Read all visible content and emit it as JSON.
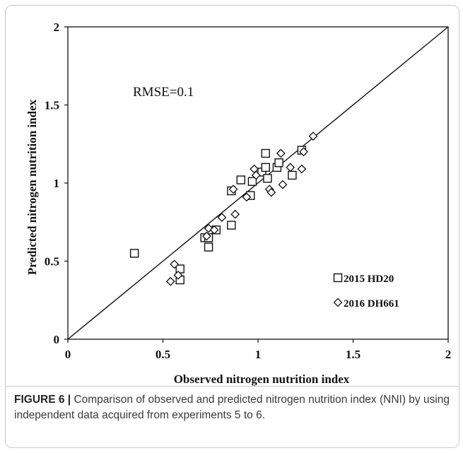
{
  "figure": {
    "caption_label": "FIGURE 6 |",
    "caption_text": " Comparison of observed and predicted nitrogen nutrition index (NNI) by using independent data acquired from experiments 5 to 6."
  },
  "chart_data": {
    "type": "scatter",
    "xlabel": "Observed nitrogen nutrition index",
    "ylabel": "Predicted nitrogen nutrition index",
    "xlim": [
      0,
      2
    ],
    "ylim": [
      0,
      2
    ],
    "x_ticks": [
      "0",
      "0.5",
      "1",
      "1.5",
      "2"
    ],
    "y_ticks": [
      "0",
      "0.5",
      "1",
      "1.5",
      "2"
    ],
    "annotation": "RMSE=0.1",
    "reference_line": [
      [
        0,
        0
      ],
      [
        2,
        2
      ]
    ],
    "legend_position": "bottom-right",
    "series": [
      {
        "name": "2015 HD20",
        "marker": "square",
        "points": [
          [
            0.35,
            0.55
          ],
          [
            0.59,
            0.45
          ],
          [
            0.59,
            0.38
          ],
          [
            0.72,
            0.65
          ],
          [
            0.74,
            0.65
          ],
          [
            0.74,
            0.59
          ],
          [
            0.78,
            0.7
          ],
          [
            0.86,
            0.73
          ],
          [
            0.86,
            0.95
          ],
          [
            0.91,
            1.02
          ],
          [
            0.96,
            0.92
          ],
          [
            0.97,
            1.01
          ],
          [
            1.02,
            1.07
          ],
          [
            1.04,
            1.19
          ],
          [
            1.04,
            1.1
          ],
          [
            1.05,
            1.03
          ],
          [
            1.1,
            1.1
          ],
          [
            1.11,
            1.13
          ],
          [
            1.18,
            1.05
          ],
          [
            1.23,
            1.21
          ]
        ]
      },
      {
        "name": "2016 DH661",
        "marker": "diamond",
        "points": [
          [
            0.54,
            0.37
          ],
          [
            0.56,
            0.48
          ],
          [
            0.58,
            0.41
          ],
          [
            0.73,
            0.66
          ],
          [
            0.74,
            0.71
          ],
          [
            0.77,
            0.7
          ],
          [
            0.81,
            0.78
          ],
          [
            0.87,
            0.96
          ],
          [
            0.88,
            0.8
          ],
          [
            0.94,
            0.91
          ],
          [
            0.98,
            1.09
          ],
          [
            0.99,
            1.05
          ],
          [
            1.06,
            0.96
          ],
          [
            1.07,
            0.94
          ],
          [
            1.12,
            1.19
          ],
          [
            1.13,
            0.99
          ],
          [
            1.17,
            1.1
          ],
          [
            1.23,
            1.09
          ],
          [
            1.24,
            1.2
          ],
          [
            1.29,
            1.3
          ]
        ]
      }
    ]
  }
}
